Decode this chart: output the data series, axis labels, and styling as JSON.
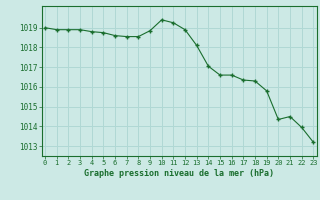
{
  "x": [
    0,
    1,
    2,
    3,
    4,
    5,
    6,
    7,
    8,
    9,
    10,
    11,
    12,
    13,
    14,
    15,
    16,
    17,
    18,
    19,
    20,
    21,
    22,
    23
  ],
  "y": [
    1019.0,
    1018.9,
    1018.9,
    1018.9,
    1018.8,
    1018.75,
    1018.6,
    1018.55,
    1018.55,
    1018.85,
    1019.4,
    1019.25,
    1018.9,
    1018.1,
    1017.05,
    1016.6,
    1016.6,
    1016.35,
    1016.3,
    1015.8,
    1014.35,
    1014.5,
    1013.95,
    1013.2
  ],
  "line_color": "#1a6e2e",
  "marker_color": "#1a6e2e",
  "bg_color": "#cce9e5",
  "grid_color": "#b0d8d4",
  "xlabel": "Graphe pression niveau de la mer (hPa)",
  "xlabel_color": "#1a6e2e",
  "tick_color": "#1a6e2e",
  "ylim": [
    1012.5,
    1020.1
  ],
  "yticks": [
    1013,
    1014,
    1015,
    1016,
    1017,
    1018,
    1019
  ],
  "xticks": [
    0,
    1,
    2,
    3,
    4,
    5,
    6,
    7,
    8,
    9,
    10,
    11,
    12,
    13,
    14,
    15,
    16,
    17,
    18,
    19,
    20,
    21,
    22,
    23
  ],
  "xlim": [
    -0.3,
    23.3
  ]
}
